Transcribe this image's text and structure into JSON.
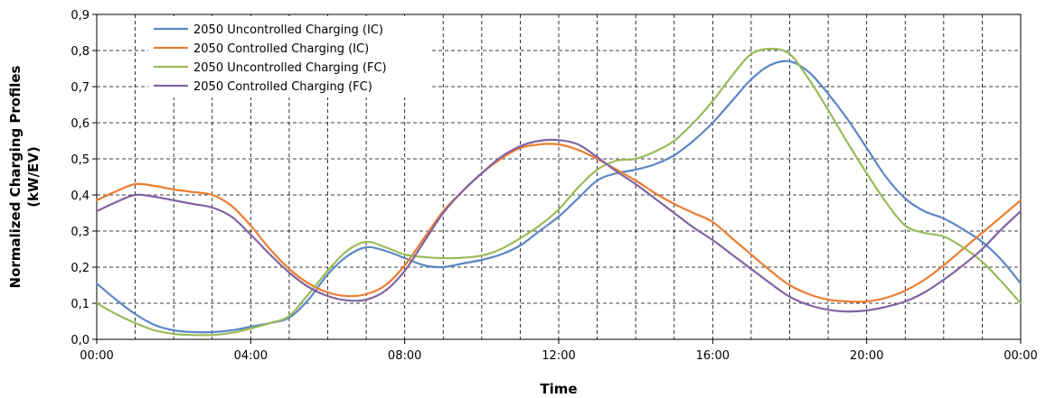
{
  "chart_data": {
    "type": "line",
    "xlabel": "Time",
    "ylabel_lines": [
      "Normalized Charging Profiles",
      "(kW/EV)"
    ],
    "x_ticks": [
      "00:00",
      "04:00",
      "08:00",
      "12:00",
      "16:00",
      "20:00",
      "00:00"
    ],
    "x_hours": [
      0,
      4,
      8,
      12,
      16,
      20,
      24
    ],
    "y_ticks": [
      "0,0",
      "0,1",
      "0,2",
      "0,3",
      "0,4",
      "0,5",
      "0,6",
      "0,7",
      "0,8",
      "0,9"
    ],
    "xlim": [
      0,
      24
    ],
    "ylim": [
      0,
      0.9
    ],
    "grid": true,
    "legend_position": "top-left",
    "x": [
      0,
      0.5,
      1,
      1.5,
      2,
      2.5,
      3,
      3.5,
      4,
      4.5,
      5,
      5.5,
      6,
      6.5,
      7,
      7.5,
      8,
      8.5,
      9,
      9.5,
      10,
      10.5,
      11,
      11.5,
      12,
      12.5,
      13,
      13.5,
      14,
      14.5,
      15,
      15.5,
      16,
      16.5,
      17,
      17.5,
      18,
      18.5,
      19,
      19.5,
      20,
      20.5,
      21,
      21.5,
      22,
      22.5,
      23,
      23.5,
      24
    ],
    "series": [
      {
        "name": "2050 Uncontrolled Charging  (IC)",
        "color": "#5b87c5",
        "values": [
          0.155,
          0.11,
          0.07,
          0.04,
          0.025,
          0.02,
          0.02,
          0.025,
          0.035,
          0.045,
          0.06,
          0.11,
          0.18,
          0.23,
          0.255,
          0.245,
          0.225,
          0.205,
          0.2,
          0.21,
          0.22,
          0.235,
          0.26,
          0.3,
          0.34,
          0.39,
          0.44,
          0.46,
          0.47,
          0.485,
          0.51,
          0.55,
          0.6,
          0.66,
          0.72,
          0.76,
          0.77,
          0.74,
          0.68,
          0.61,
          0.53,
          0.45,
          0.39,
          0.355,
          0.335,
          0.305,
          0.27,
          0.22,
          0.155
        ]
      },
      {
        "name": "2050 Controlled Charging  (IC)",
        "color": "#ed7d31",
        "values": [
          0.385,
          0.41,
          0.43,
          0.425,
          0.415,
          0.408,
          0.4,
          0.37,
          0.315,
          0.25,
          0.195,
          0.155,
          0.13,
          0.12,
          0.125,
          0.15,
          0.205,
          0.28,
          0.355,
          0.41,
          0.46,
          0.5,
          0.53,
          0.54,
          0.54,
          0.525,
          0.5,
          0.47,
          0.44,
          0.405,
          0.375,
          0.35,
          0.325,
          0.28,
          0.235,
          0.19,
          0.15,
          0.125,
          0.11,
          0.105,
          0.105,
          0.115,
          0.135,
          0.165,
          0.205,
          0.25,
          0.295,
          0.34,
          0.385
        ]
      },
      {
        "name": "2050 Uncontrolled Charging  (FC)",
        "color": "#9bbb59",
        "values": [
          0.1,
          0.07,
          0.045,
          0.025,
          0.015,
          0.012,
          0.012,
          0.018,
          0.03,
          0.045,
          0.065,
          0.125,
          0.19,
          0.245,
          0.27,
          0.255,
          0.235,
          0.228,
          0.225,
          0.226,
          0.232,
          0.25,
          0.28,
          0.315,
          0.36,
          0.42,
          0.47,
          0.495,
          0.5,
          0.52,
          0.55,
          0.6,
          0.66,
          0.73,
          0.79,
          0.805,
          0.79,
          0.72,
          0.635,
          0.545,
          0.46,
          0.38,
          0.315,
          0.295,
          0.285,
          0.255,
          0.215,
          0.16,
          0.1
        ]
      },
      {
        "name": "2050 Controlled Charging  (FC)",
        "color": "#8064a2",
        "values": [
          0.355,
          0.38,
          0.4,
          0.395,
          0.385,
          0.375,
          0.365,
          0.34,
          0.29,
          0.235,
          0.185,
          0.145,
          0.12,
          0.108,
          0.11,
          0.135,
          0.19,
          0.27,
          0.35,
          0.41,
          0.46,
          0.505,
          0.535,
          0.55,
          0.552,
          0.54,
          0.505,
          0.465,
          0.43,
          0.39,
          0.35,
          0.31,
          0.275,
          0.235,
          0.195,
          0.155,
          0.118,
          0.095,
          0.082,
          0.077,
          0.08,
          0.09,
          0.105,
          0.13,
          0.165,
          0.205,
          0.25,
          0.305,
          0.355
        ]
      }
    ]
  }
}
